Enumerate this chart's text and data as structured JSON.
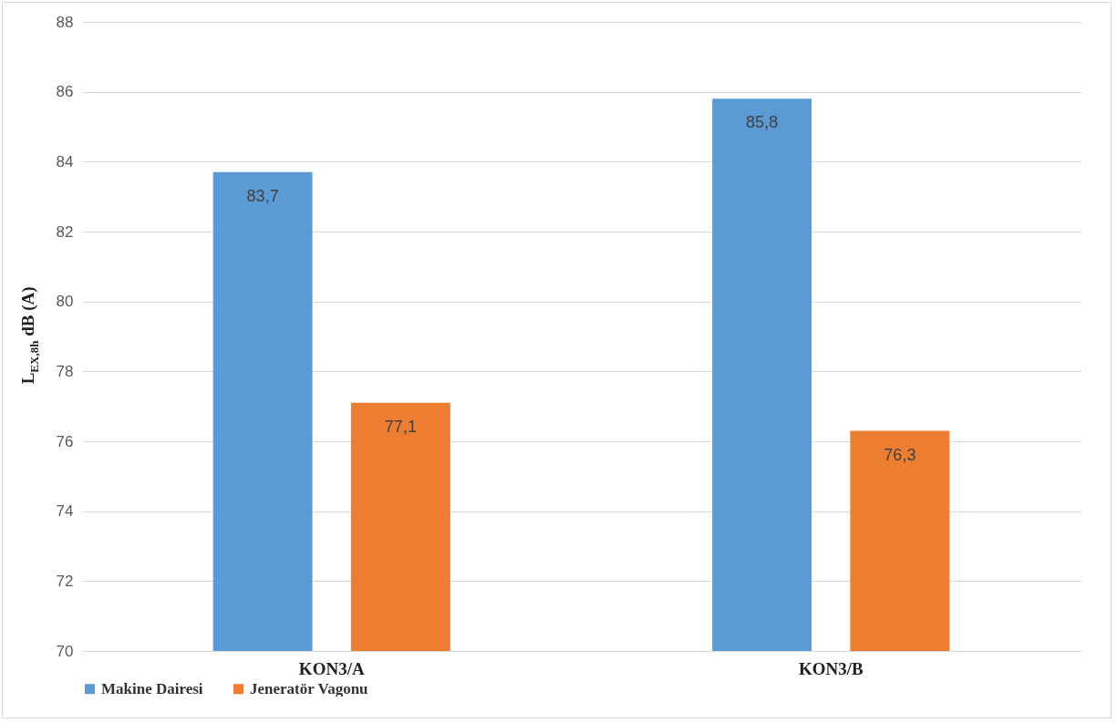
{
  "chart_data": {
    "type": "bar",
    "ylabel": "L$_{EX,8h}$ dB (A)",
    "categories": [
      "KON3/A",
      "KON3/B"
    ],
    "series": [
      {
        "name": "Makine Dairesi",
        "color": "#5b9bd5",
        "values": [
          83.7,
          85.8
        ],
        "value_labels": [
          "83,7",
          "85,8"
        ]
      },
      {
        "name": "Jeneratör Vagonu",
        "color": "#ed7d31",
        "values": [
          77.1,
          76.3
        ],
        "value_labels": [
          "77,1",
          "76,3"
        ]
      }
    ],
    "ylim": [
      70,
      88
    ],
    "yticks": [
      70,
      72,
      74,
      76,
      78,
      80,
      82,
      84,
      86,
      88
    ],
    "grid": "y",
    "legend": "bottom"
  }
}
